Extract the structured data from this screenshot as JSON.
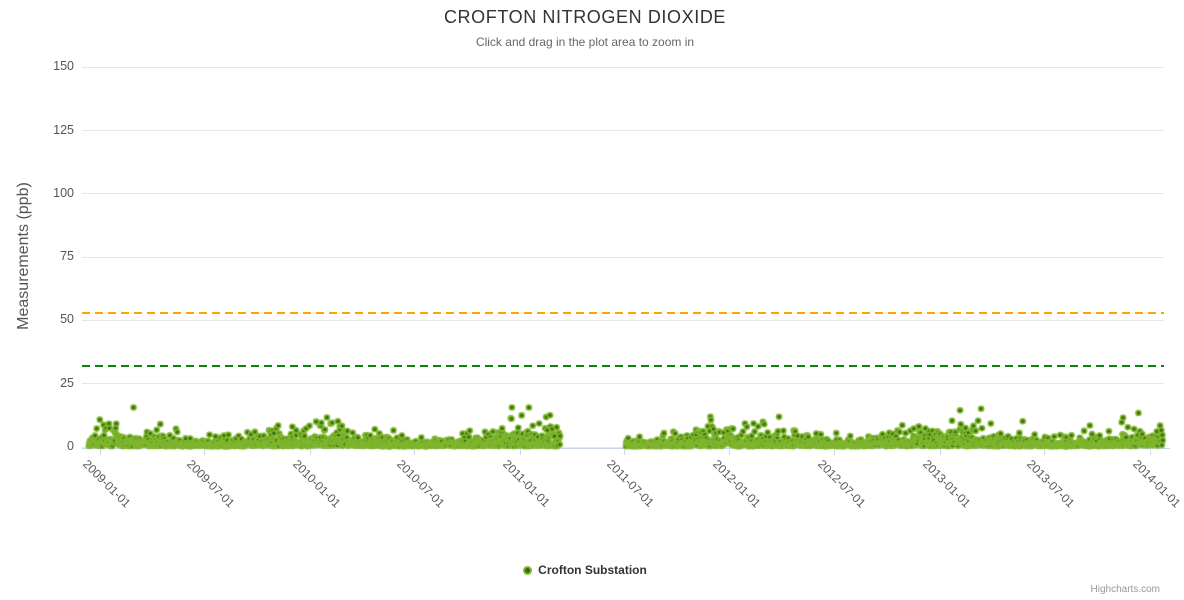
{
  "chart": {
    "credits": "Highcharts.com"
  },
  "chart_data": {
    "type": "scatter",
    "title": "CROFTON NITROGEN DIOXIDE",
    "subtitle": "Click and drag in the plot area to zoom in",
    "xlabel": "",
    "ylabel": "Measurements (ppb)",
    "ylim": [
      0,
      150
    ],
    "yticks": [
      0,
      25,
      50,
      75,
      100,
      125,
      150
    ],
    "xtype": "datetime",
    "xlim": [
      "2008-11-30",
      "2014-01-25"
    ],
    "xticks": [
      "2009-01-01",
      "2009-07-01",
      "2010-01-01",
      "2010-07-01",
      "2011-01-01",
      "2011-07-01",
      "2012-01-01",
      "2012-07-01",
      "2013-01-01",
      "2013-07-01",
      "2014-01-01"
    ],
    "grid": "horizontal",
    "legend_position": "bottom-center",
    "plot_lines": [
      {
        "value": 53,
        "color": "#ffa500",
        "style": "dashed",
        "width": 2
      },
      {
        "value": 32,
        "color": "#0a840a",
        "style": "dashed",
        "width": 2
      }
    ],
    "series": [
      {
        "name": "Crofton Substation",
        "marker": {
          "shape": "circle",
          "ring_color": "#7fb62e",
          "core_color": "#376e0b",
          "radius_px": 3.3
        },
        "value_summary": {
          "min_ppb": 0,
          "max_ppb": 16,
          "typical_ppb": "0-8",
          "seasonal_peak": "winter"
        },
        "segments": [
          {
            "start": "2008-12-12",
            "end": "2011-03-12",
            "points": 1230
          },
          {
            "start": "2011-07-04",
            "end": "2014-01-23",
            "points": 1400
          }
        ],
        "data_gap": {
          "start": "2011-03-12",
          "end": "2011-07-04"
        }
      }
    ]
  }
}
